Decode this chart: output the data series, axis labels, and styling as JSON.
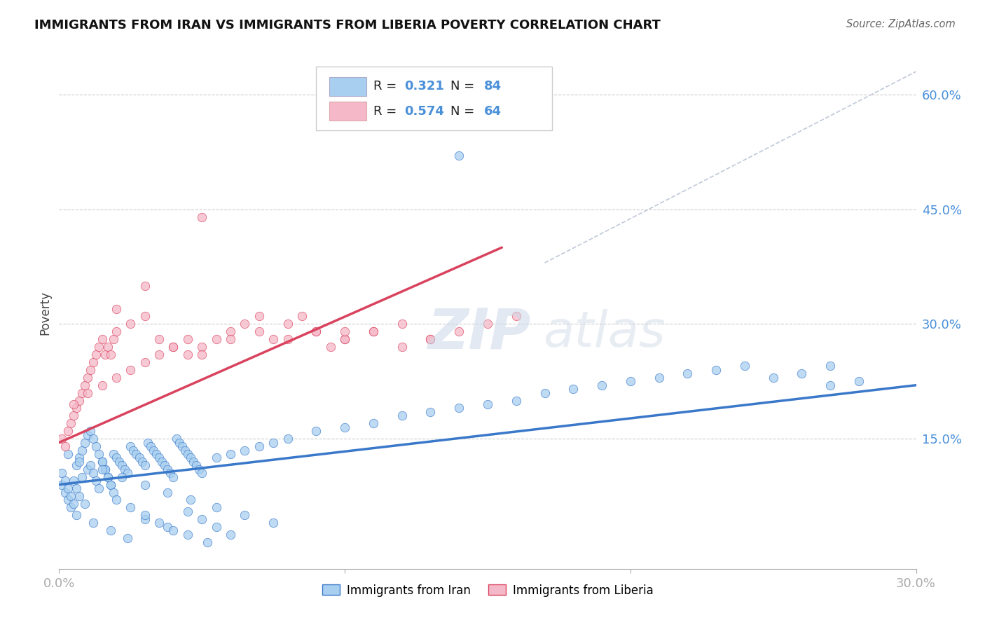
{
  "title": "IMMIGRANTS FROM IRAN VS IMMIGRANTS FROM LIBERIA POVERTY CORRELATION CHART",
  "source": "Source: ZipAtlas.com",
  "ylabel": "Poverty",
  "yticks": [
    "15.0%",
    "30.0%",
    "45.0%",
    "60.0%"
  ],
  "ytick_values": [
    0.15,
    0.3,
    0.45,
    0.6
  ],
  "xlim": [
    0.0,
    0.3
  ],
  "ylim": [
    -0.02,
    0.65
  ],
  "iran_color": "#a8cff0",
  "iran_color_line": "#3a78c9",
  "liberia_color": "#f5b8c8",
  "liberia_color_line": "#d9435e",
  "iran_R": "0.321",
  "iran_N": "84",
  "liberia_R": "0.574",
  "liberia_N": "64",
  "watermark_zip": "ZIP",
  "watermark_atlas": "atlas",
  "diag_color": "#c0c8d8",
  "iran_scatter_x": [
    0.001,
    0.002,
    0.003,
    0.004,
    0.005,
    0.006,
    0.007,
    0.008,
    0.009,
    0.01,
    0.011,
    0.012,
    0.013,
    0.014,
    0.015,
    0.016,
    0.017,
    0.018,
    0.019,
    0.02,
    0.021,
    0.022,
    0.023,
    0.024,
    0.025,
    0.026,
    0.027,
    0.028,
    0.029,
    0.03,
    0.031,
    0.032,
    0.033,
    0.034,
    0.035,
    0.036,
    0.037,
    0.038,
    0.039,
    0.04,
    0.041,
    0.042,
    0.043,
    0.044,
    0.045,
    0.046,
    0.047,
    0.048,
    0.049,
    0.05,
    0.055,
    0.06,
    0.065,
    0.07,
    0.075,
    0.08,
    0.09,
    0.1,
    0.11,
    0.12,
    0.13,
    0.14,
    0.15,
    0.16,
    0.17,
    0.18,
    0.19,
    0.2,
    0.21,
    0.22,
    0.23,
    0.24,
    0.25,
    0.26,
    0.27,
    0.28,
    0.006,
    0.012,
    0.018,
    0.024,
    0.03,
    0.038,
    0.045,
    0.052
  ],
  "iran_scatter_y": [
    0.09,
    0.08,
    0.07,
    0.06,
    0.095,
    0.085,
    0.075,
    0.1,
    0.065,
    0.11,
    0.115,
    0.105,
    0.095,
    0.085,
    0.12,
    0.11,
    0.1,
    0.09,
    0.13,
    0.125,
    0.12,
    0.115,
    0.11,
    0.105,
    0.14,
    0.135,
    0.13,
    0.125,
    0.12,
    0.115,
    0.145,
    0.14,
    0.135,
    0.13,
    0.125,
    0.12,
    0.115,
    0.11,
    0.105,
    0.1,
    0.15,
    0.145,
    0.14,
    0.135,
    0.13,
    0.125,
    0.12,
    0.115,
    0.11,
    0.105,
    0.125,
    0.13,
    0.135,
    0.14,
    0.145,
    0.15,
    0.16,
    0.165,
    0.17,
    0.18,
    0.185,
    0.19,
    0.195,
    0.2,
    0.21,
    0.215,
    0.22,
    0.225,
    0.23,
    0.235,
    0.24,
    0.245,
    0.23,
    0.235,
    0.22,
    0.225,
    0.05,
    0.04,
    0.03,
    0.02,
    0.045,
    0.035,
    0.025,
    0.015
  ],
  "iran_scatter_x2": [
    0.001,
    0.002,
    0.003,
    0.004,
    0.005,
    0.006,
    0.007,
    0.008,
    0.009,
    0.01,
    0.011,
    0.012,
    0.013,
    0.014,
    0.015,
    0.016,
    0.017,
    0.018,
    0.019,
    0.02,
    0.025,
    0.03,
    0.035,
    0.04,
    0.045,
    0.05,
    0.055,
    0.06,
    0.14,
    0.27,
    0.003,
    0.007,
    0.015,
    0.022,
    0.03,
    0.038,
    0.046,
    0.055,
    0.065,
    0.075
  ],
  "iran_scatter_y2": [
    0.105,
    0.095,
    0.085,
    0.075,
    0.065,
    0.115,
    0.125,
    0.135,
    0.145,
    0.155,
    0.16,
    0.15,
    0.14,
    0.13,
    0.12,
    0.11,
    0.1,
    0.09,
    0.08,
    0.07,
    0.06,
    0.05,
    0.04,
    0.03,
    0.055,
    0.045,
    0.035,
    0.025,
    0.52,
    0.245,
    0.13,
    0.12,
    0.11,
    0.1,
    0.09,
    0.08,
    0.07,
    0.06,
    0.05,
    0.04
  ],
  "liberia_scatter_x": [
    0.001,
    0.002,
    0.003,
    0.004,
    0.005,
    0.006,
    0.007,
    0.008,
    0.009,
    0.01,
    0.011,
    0.012,
    0.013,
    0.014,
    0.015,
    0.016,
    0.017,
    0.018,
    0.019,
    0.02,
    0.025,
    0.03,
    0.035,
    0.04,
    0.045,
    0.05,
    0.055,
    0.06,
    0.065,
    0.07,
    0.075,
    0.08,
    0.085,
    0.09,
    0.095,
    0.1,
    0.11,
    0.12,
    0.13,
    0.005,
    0.01,
    0.015,
    0.02,
    0.025,
    0.03,
    0.035,
    0.04,
    0.045,
    0.05,
    0.06,
    0.07,
    0.08,
    0.09,
    0.1,
    0.11,
    0.12,
    0.13,
    0.14,
    0.15,
    0.16,
    0.1,
    0.05,
    0.03,
    0.02
  ],
  "liberia_scatter_y": [
    0.15,
    0.14,
    0.16,
    0.17,
    0.18,
    0.19,
    0.2,
    0.21,
    0.22,
    0.23,
    0.24,
    0.25,
    0.26,
    0.27,
    0.28,
    0.26,
    0.27,
    0.26,
    0.28,
    0.29,
    0.3,
    0.31,
    0.28,
    0.27,
    0.26,
    0.27,
    0.28,
    0.29,
    0.3,
    0.31,
    0.28,
    0.3,
    0.31,
    0.29,
    0.27,
    0.28,
    0.29,
    0.27,
    0.28,
    0.195,
    0.21,
    0.22,
    0.23,
    0.24,
    0.25,
    0.26,
    0.27,
    0.28,
    0.26,
    0.28,
    0.29,
    0.28,
    0.29,
    0.28,
    0.29,
    0.3,
    0.28,
    0.29,
    0.3,
    0.31,
    0.29,
    0.44,
    0.35,
    0.32
  ],
  "iran_line_x": [
    0.0,
    0.3
  ],
  "iran_line_y": [
    0.09,
    0.22
  ],
  "liberia_line_x": [
    0.0,
    0.155
  ],
  "liberia_line_y": [
    0.145,
    0.4
  ],
  "diag_line_x": [
    0.17,
    0.3
  ],
  "diag_line_y": [
    0.38,
    0.63
  ]
}
